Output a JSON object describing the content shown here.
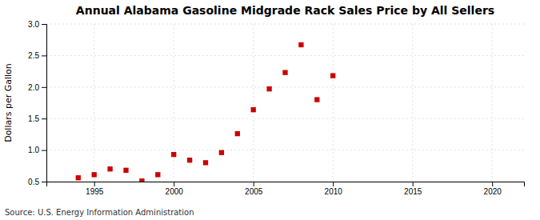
{
  "chart_data": {
    "type": "scatter",
    "title": "Annual Alabama Gasoline Midgrade Rack Sales Price by All Sellers",
    "ylabel": "Dollars per Gallon",
    "annotations": [
      "Source: U.S. Energy Information Administration"
    ],
    "x": [
      1994,
      1995,
      1996,
      1997,
      1998,
      1999,
      2000,
      2001,
      2002,
      2003,
      2004,
      2005,
      2006,
      2007,
      2008,
      2009,
      2010
    ],
    "values": [
      0.56,
      0.61,
      0.7,
      0.68,
      0.51,
      0.61,
      0.93,
      0.84,
      0.8,
      0.96,
      1.26,
      1.64,
      1.97,
      2.23,
      2.67,
      1.8,
      2.18
    ],
    "color": "#cc0000",
    "marker": "square",
    "xlim": [
      1992,
      2022
    ],
    "ylim": [
      0.5,
      3.0
    ],
    "xticks": [
      1995,
      2000,
      2005,
      2010,
      2015,
      2020
    ],
    "yticks": [
      0.5,
      {
        "value": 1.0,
        "label": "1.0"
      },
      1.5,
      {
        "value": 2.0,
        "label": "2.0"
      },
      2.5,
      {
        "value": 3.0,
        "label": "3.0"
      }
    ],
    "grid": true
  }
}
